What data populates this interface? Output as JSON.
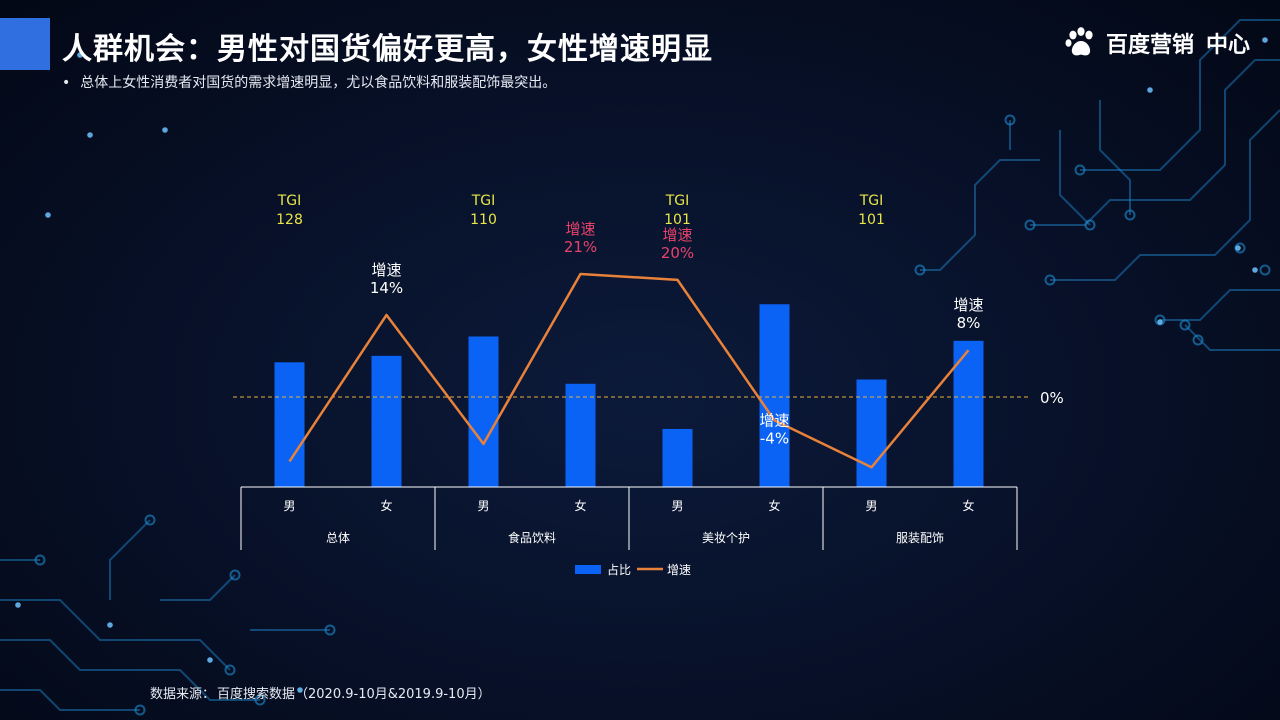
{
  "header": {
    "title": "人群机会：男性对国货偏好更高，女性增速明显",
    "subtitle_bullet": "•",
    "subtitle": "总体上女性消费者对国货的需求增速明显，尤以食品饮料和服装配饰最突出。"
  },
  "logo": {
    "brand": "百度营销",
    "suffix": "中心",
    "icon": "baidu-paw-icon"
  },
  "footer": {
    "source_label": "数据来源：",
    "source_value": "百度搜索数据（2020.9-10月&2019.9-10月）"
  },
  "colors": {
    "bar": "#0a63f5",
    "line": "#e8823a",
    "tgi": "#e9e54a",
    "growth_highlight": "#e8426a",
    "growth_normal": "#ffffff",
    "zero_line": "#e6b13a",
    "accent_block": "#2f6fe0",
    "circuit": "#1e8fd6"
  },
  "chart_data": {
    "type": "bar",
    "title": "",
    "groups": [
      {
        "name": "总体",
        "categories": [
          "男",
          "女"
        ]
      },
      {
        "name": "食品饮料",
        "categories": [
          "男",
          "女"
        ]
      },
      {
        "name": "美妆个护",
        "categories": [
          "男",
          "女"
        ]
      },
      {
        "name": "服装配饰",
        "categories": [
          "男",
          "女"
        ]
      }
    ],
    "series": [
      {
        "name": "占比",
        "kind": "bar",
        "values": [
          0.58,
          0.61,
          0.7,
          0.48,
          0.27,
          0.85,
          0.5,
          0.68
        ]
      },
      {
        "name": "增速",
        "kind": "line",
        "unit": "%",
        "values": [
          -11,
          14,
          -8,
          21,
          20,
          -4,
          -12,
          8
        ]
      }
    ],
    "tgi": [
      {
        "index": 0,
        "label": "TGI",
        "value": "128"
      },
      {
        "index": 2,
        "label": "TGI",
        "value": "110"
      },
      {
        "index": 4,
        "label": "TGI",
        "value": "101"
      },
      {
        "index": 6,
        "label": "TGI",
        "value": "101"
      }
    ],
    "growth_labels": [
      {
        "index": 1,
        "label": "增速",
        "value": "14%",
        "highlight": false
      },
      {
        "index": 3,
        "label": "增速",
        "value": "21%",
        "highlight": true
      },
      {
        "index": 4,
        "label": "增速",
        "value": "20%",
        "highlight": true
      },
      {
        "index": 5,
        "label": "增速",
        "value": "-4%",
        "highlight": false
      },
      {
        "index": 7,
        "label": "增速",
        "value": "8%",
        "highlight": false
      }
    ],
    "reference_line": {
      "value": 0,
      "label": "0%"
    },
    "legend": {
      "position": "bottom",
      "entries": [
        "占比",
        "增速"
      ]
    }
  }
}
